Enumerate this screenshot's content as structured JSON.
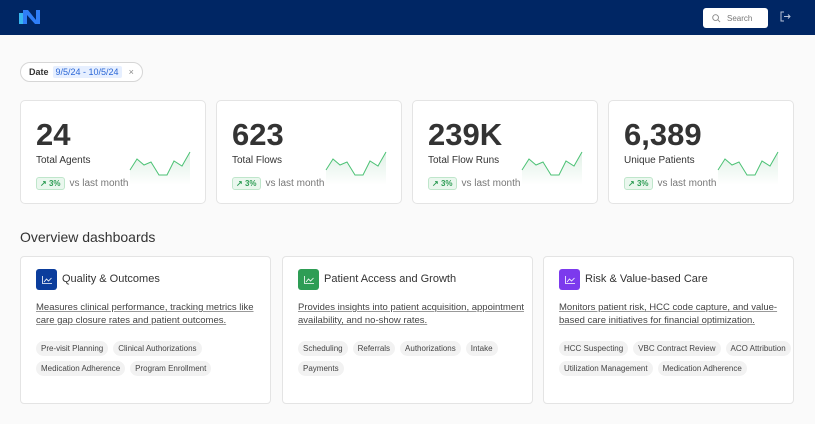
{
  "header": {
    "search_placeholder": "Search",
    "icons": [
      "logo",
      "search-icon",
      "logout-icon"
    ],
    "color": "#002664"
  },
  "filter": {
    "label": "Date",
    "value": "9/5/24 - 10/5/24"
  },
  "stats": [
    {
      "value": "24",
      "label": "Total Agents",
      "change": "3%",
      "compare": "vs last month"
    },
    {
      "value": "623",
      "label": "Total Flows",
      "change": "3%",
      "compare": "vs last month"
    },
    {
      "value": "239K",
      "label": "Total Flow Runs",
      "change": "3%",
      "compare": "vs last month"
    },
    {
      "value": "6,389",
      "label": "Unique Patients",
      "change": "3%",
      "compare": "vs last month"
    }
  ],
  "overview": {
    "title": "Overview dashboards",
    "cards": [
      {
        "title": "Quality & Outcomes",
        "color": "#0b3d9c",
        "description": "Measures clinical performance, tracking metrics like care gap closure rates and patient outcomes.",
        "tags": [
          "Pre-visit Planning",
          "Clinical Authorizations",
          "Medication Adherence",
          "Program Enrollment"
        ]
      },
      {
        "title": "Patient Access and Growth",
        "color": "#2e9d55",
        "description": "Provides insights into patient acquisition, appointment availability, and no-show rates.",
        "tags": [
          "Scheduling",
          "Referrals",
          "Authorizations",
          "Intake",
          "Payments"
        ]
      },
      {
        "title": "Risk & Value-based Care",
        "color": "#7c3aed",
        "description": "Monitors patient risk, HCC code capture, and value-based care initiatives for financial optimization.",
        "tags": [
          "HCC Suspecting",
          "VBC Contract Review",
          "ACO Attribution",
          "Utilization Management",
          "Medication Adherence"
        ]
      }
    ]
  }
}
